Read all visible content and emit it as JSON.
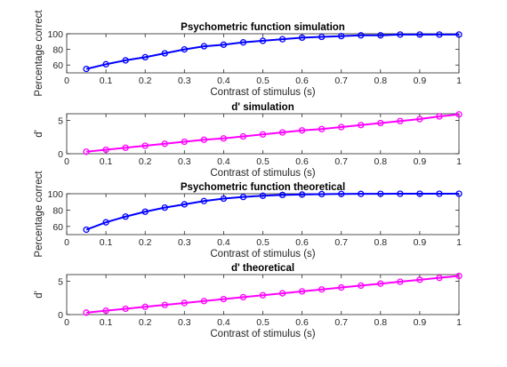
{
  "figure": {
    "background": "#ffffff"
  },
  "chart_data": [
    {
      "type": "line",
      "title": "Psychometric function simulation",
      "xlabel": "Contrast of stimulus (s)",
      "ylabel": "Percentage correct",
      "xlim": [
        0,
        1
      ],
      "ylim": [
        50,
        100
      ],
      "xticks": [
        0,
        0.1,
        0.2,
        0.3,
        0.4,
        0.5,
        0.6,
        0.7,
        0.8,
        0.9,
        1
      ],
      "xtick_labels": [
        "0",
        "0.1",
        "0.2",
        "0.3",
        "0.4",
        "0.5",
        "0.6",
        "0.7",
        "0.8",
        "0.9",
        "1"
      ],
      "yticks": [
        60,
        80,
        100
      ],
      "ytick_labels": [
        "60",
        "80",
        "100"
      ],
      "grid": false,
      "series": [
        {
          "color": "#0000ff",
          "marker": "circle",
          "x": [
            0.05,
            0.1,
            0.15,
            0.2,
            0.25,
            0.3,
            0.35,
            0.4,
            0.45,
            0.5,
            0.55,
            0.6,
            0.65,
            0.7,
            0.75,
            0.8,
            0.85,
            0.9,
            0.95,
            1.0
          ],
          "y": [
            55,
            61,
            66,
            70,
            75,
            80,
            84,
            86,
            89,
            91,
            93,
            95,
            96,
            97,
            98,
            98,
            99,
            99,
            99,
            99
          ]
        }
      ]
    },
    {
      "type": "line",
      "title": "d' simulation",
      "xlabel": "Contrast of stimulus (s)",
      "ylabel": "d'",
      "xlim": [
        0,
        1
      ],
      "ylim": [
        0,
        6
      ],
      "xticks": [
        0,
        0.1,
        0.2,
        0.3,
        0.4,
        0.5,
        0.6,
        0.7,
        0.8,
        0.9,
        1
      ],
      "xtick_labels": [
        "0",
        "0.1",
        "0.2",
        "0.3",
        "0.4",
        "0.5",
        "0.6",
        "0.7",
        "0.8",
        "0.9",
        "1"
      ],
      "yticks": [
        0,
        5
      ],
      "ytick_labels": [
        "0",
        "5"
      ],
      "grid": false,
      "series": [
        {
          "color": "#ff00ff",
          "marker": "circle",
          "x": [
            0.05,
            0.1,
            0.15,
            0.2,
            0.25,
            0.3,
            0.35,
            0.4,
            0.45,
            0.5,
            0.55,
            0.6,
            0.65,
            0.7,
            0.75,
            0.8,
            0.85,
            0.9,
            0.95,
            1.0
          ],
          "y": [
            0.3,
            0.6,
            0.9,
            1.2,
            1.5,
            1.8,
            2.1,
            2.3,
            2.6,
            2.9,
            3.2,
            3.5,
            3.7,
            4.0,
            4.3,
            4.6,
            4.9,
            5.2,
            5.6,
            5.9
          ]
        }
      ]
    },
    {
      "type": "line",
      "title": "Psychometric function theoretical",
      "xlabel": "Contrast of stimulus (s)",
      "ylabel": "Percentage correct",
      "xlim": [
        0,
        1
      ],
      "ylim": [
        50,
        100
      ],
      "xticks": [
        0,
        0.1,
        0.2,
        0.3,
        0.4,
        0.5,
        0.6,
        0.7,
        0.8,
        0.9,
        1
      ],
      "xtick_labels": [
        "0",
        "0.1",
        "0.2",
        "0.3",
        "0.4",
        "0.5",
        "0.6",
        "0.7",
        "0.8",
        "0.9",
        "1"
      ],
      "yticks": [
        60,
        80,
        100
      ],
      "ytick_labels": [
        "60",
        "80",
        "100"
      ],
      "grid": false,
      "series": [
        {
          "color": "#0000ff",
          "marker": "circle",
          "x": [
            0.05,
            0.1,
            0.15,
            0.2,
            0.25,
            0.3,
            0.35,
            0.4,
            0.45,
            0.5,
            0.55,
            0.6,
            0.65,
            0.7,
            0.75,
            0.8,
            0.85,
            0.9,
            0.95,
            1.0
          ],
          "y": [
            56,
            65,
            72,
            78,
            83,
            87,
            91,
            94,
            96,
            97.5,
            98.5,
            99,
            99.5,
            99.7,
            99.8,
            99.9,
            100,
            100,
            100,
            100
          ]
        }
      ]
    },
    {
      "type": "line",
      "title": "d' theoretical",
      "xlabel": "Contrast of stimulus (s)",
      "ylabel": "d'",
      "xlim": [
        0,
        1
      ],
      "ylim": [
        0,
        6
      ],
      "xticks": [
        0,
        0.1,
        0.2,
        0.3,
        0.4,
        0.5,
        0.6,
        0.7,
        0.8,
        0.9,
        1
      ],
      "xtick_labels": [
        "0",
        "0.1",
        "0.2",
        "0.3",
        "0.4",
        "0.5",
        "0.6",
        "0.7",
        "0.8",
        "0.9",
        "1"
      ],
      "yticks": [
        0,
        5
      ],
      "ytick_labels": [
        "0",
        "5"
      ],
      "grid": false,
      "series": [
        {
          "color": "#ff00ff",
          "marker": "circle",
          "x": [
            0.05,
            0.1,
            0.15,
            0.2,
            0.25,
            0.3,
            0.35,
            0.4,
            0.45,
            0.5,
            0.55,
            0.6,
            0.65,
            0.7,
            0.75,
            0.8,
            0.85,
            0.9,
            0.95,
            1.0
          ],
          "y": [
            0.29,
            0.58,
            0.87,
            1.16,
            1.45,
            1.74,
            2.03,
            2.32,
            2.61,
            2.9,
            3.19,
            3.48,
            3.77,
            4.06,
            4.35,
            4.64,
            4.93,
            5.22,
            5.51,
            5.8
          ]
        }
      ]
    }
  ]
}
